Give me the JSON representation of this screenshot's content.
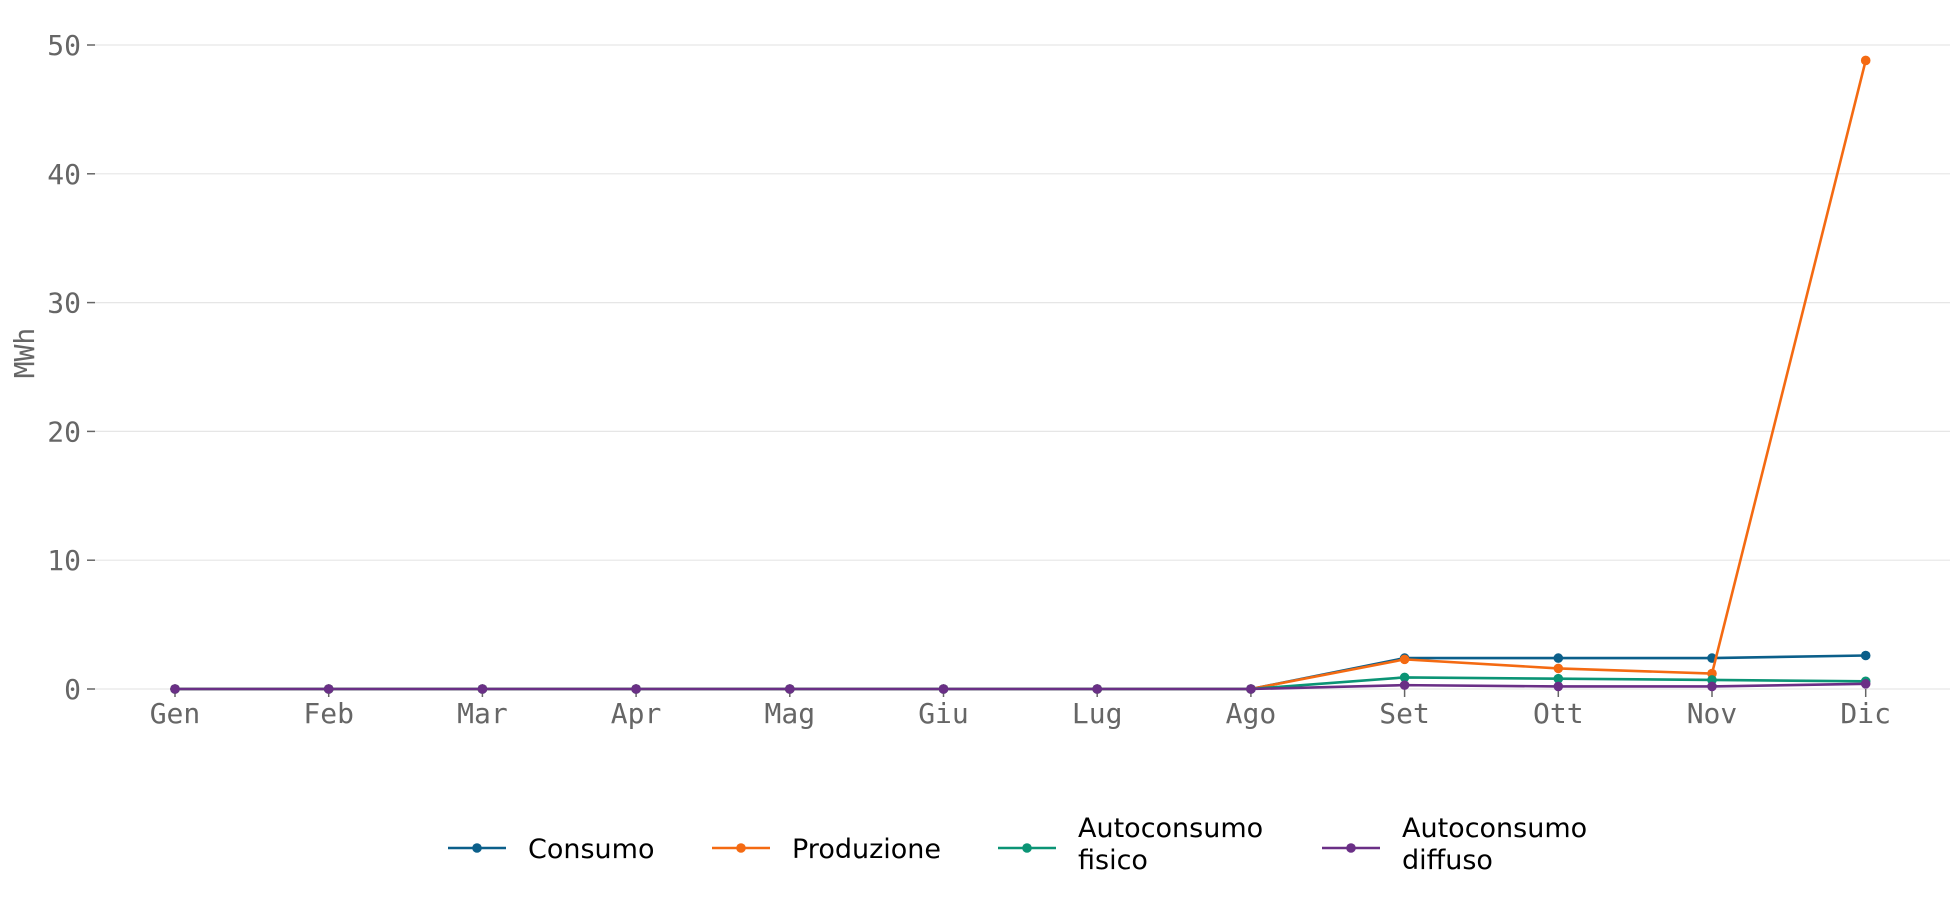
{
  "chart_data": {
    "type": "line",
    "title": "",
    "xlabel": "",
    "ylabel": "MWh",
    "categories": [
      "Gen",
      "Feb",
      "Mar",
      "Apr",
      "Mag",
      "Giu",
      "Lug",
      "Ago",
      "Set",
      "Ott",
      "Nov",
      "Dic"
    ],
    "ylim": [
      0,
      52
    ],
    "yticks": [
      0,
      10,
      20,
      30,
      40,
      50
    ],
    "grid": true,
    "legend_position": "bottom-center",
    "series": [
      {
        "name": "Consumo",
        "color": "#0b5f8a",
        "values": [
          0,
          0,
          0,
          0,
          0,
          0,
          0,
          0,
          2.4,
          2.4,
          2.4,
          2.6
        ]
      },
      {
        "name": "Produzione",
        "color": "#f46a12",
        "values": [
          0,
          0,
          0,
          0,
          0,
          0,
          0,
          0,
          2.3,
          1.6,
          1.2,
          48.8
        ]
      },
      {
        "name": "Autoconsumo fisico",
        "color": "#0b9475",
        "values": [
          0,
          0,
          0,
          0,
          0,
          0,
          0,
          0,
          0.9,
          0.8,
          0.7,
          0.6
        ]
      },
      {
        "name": "Autoconsumo diffuso",
        "color": "#6a2f86",
        "values": [
          0,
          0,
          0,
          0,
          0,
          0,
          0,
          0,
          0.3,
          0.2,
          0.2,
          0.4
        ]
      }
    ]
  }
}
